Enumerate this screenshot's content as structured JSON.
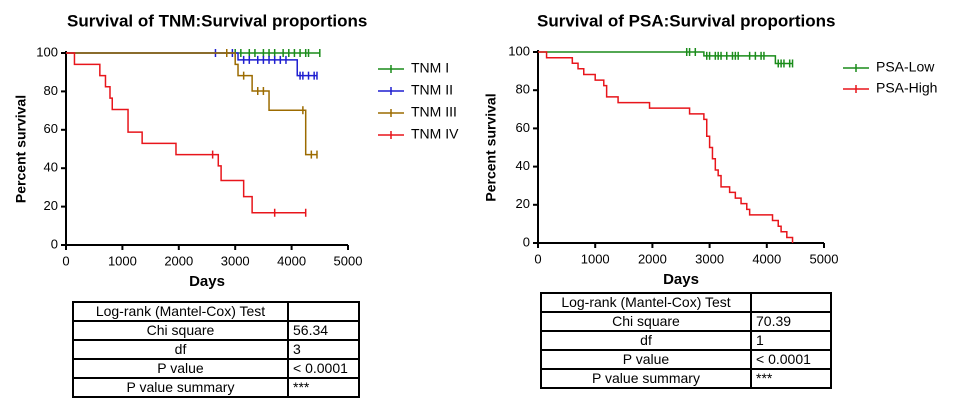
{
  "chart_data": [
    {
      "type": "survival",
      "title": "Survival of TNM:Survival proportions",
      "x_label": "Days",
      "y_label": "Percent survival",
      "xlim": [
        0,
        5000
      ],
      "xticks": [
        0,
        1000,
        2000,
        3000,
        4000,
        5000
      ],
      "ylim": [
        0,
        100
      ],
      "yticks": [
        0,
        20,
        40,
        60,
        80,
        100
      ],
      "series": [
        {
          "name": "TNM I",
          "color": "#1a8c1a",
          "x": [
            0
          ],
          "values": [
            100
          ],
          "censor_x": [
            3000,
            3100,
            3250,
            3350,
            3500,
            3600,
            3700,
            3850,
            3950,
            4050,
            4150,
            4250,
            4300,
            4500
          ],
          "censor_values": [
            100,
            100,
            100,
            100,
            100,
            100,
            100,
            100,
            100,
            100,
            100,
            100,
            100,
            100
          ]
        },
        {
          "name": "TNM II",
          "color": "#1f1fd0",
          "x": [
            0,
            3050,
            4100
          ],
          "values": [
            100,
            96.4,
            88.2
          ],
          "censor_x": [
            2650,
            2950,
            3150,
            3250,
            3400,
            3500,
            3600,
            3700,
            3800,
            3900,
            4150,
            4200,
            4300,
            4400,
            4450
          ],
          "censor_values": [
            100,
            100,
            96.4,
            96.4,
            96.4,
            96.4,
            96.4,
            96.4,
            96.4,
            96.4,
            88.2,
            88.2,
            88.2,
            88.2,
            88.2
          ]
        },
        {
          "name": "TNM III",
          "color": "#9c6b00",
          "x": [
            0,
            3000,
            3050,
            3300,
            3600,
            4250
          ],
          "values": [
            100,
            94.1,
            88.2,
            80.2,
            70.2,
            47.1
          ],
          "censor_x": [
            2850,
            3150,
            3400,
            3500,
            4200,
            4350,
            4450
          ],
          "censor_values": [
            100,
            88.2,
            80.2,
            80.2,
            70.2,
            47.1,
            47.1
          ]
        },
        {
          "name": "TNM IV",
          "color": "#e8151b",
          "x": [
            0,
            150,
            600,
            700,
            780,
            820,
            1100,
            1350,
            1950,
            2700,
            2750,
            3150,
            3300
          ],
          "values": [
            100,
            94.1,
            88.2,
            82.4,
            76.5,
            70.6,
            58.8,
            52.9,
            47.1,
            41.2,
            33.6,
            25.2,
            16.8
          ],
          "censor_x": [
            2600,
            3700,
            4250
          ],
          "censor_values": [
            47.1,
            16.8,
            16.8
          ]
        }
      ]
    },
    {
      "type": "survival",
      "title": "Survival of PSA:Survival proportions",
      "x_label": "Days",
      "y_label": "Percent survival",
      "xlim": [
        0,
        5000
      ],
      "xticks": [
        0,
        1000,
        2000,
        3000,
        4000,
        5000
      ],
      "ylim": [
        0,
        100
      ],
      "yticks": [
        0,
        20,
        40,
        60,
        80,
        100
      ],
      "series": [
        {
          "name": "PSA-Low",
          "color": "#1a8c1a",
          "x": [
            0,
            2900,
            4150
          ],
          "values": [
            100,
            98,
            94
          ],
          "censor_x": [
            2600,
            2650,
            2750,
            2950,
            3000,
            3100,
            3150,
            3200,
            3300,
            3400,
            3450,
            3500,
            3700,
            3800,
            3900,
            3950,
            4200,
            4250,
            4300,
            4400,
            4450
          ],
          "censor_values": [
            100,
            100,
            100,
            98,
            98,
            98,
            98,
            98,
            98,
            98,
            98,
            98,
            98,
            98,
            98,
            98,
            94,
            94,
            94,
            94,
            94
          ]
        },
        {
          "name": "PSA-High",
          "color": "#e8151b",
          "x": [
            0,
            150,
            600,
            700,
            800,
            1000,
            1150,
            1200,
            1400,
            1950,
            2650,
            2900,
            2950,
            3000,
            3050,
            3100,
            3150,
            3200,
            3350,
            3450,
            3550,
            3650,
            3700,
            4100,
            4200,
            4250,
            4350,
            4450
          ],
          "values": [
            100,
            97,
            94.1,
            91.2,
            88.2,
            85.3,
            82.4,
            76.5,
            73.5,
            70.6,
            67.6,
            64.7,
            55.9,
            50,
            44.1,
            38.2,
            35.3,
            29.4,
            26.5,
            23.5,
            20.6,
            17.6,
            14.7,
            11.8,
            8.8,
            5.9,
            2.9,
            0
          ]
        }
      ]
    }
  ],
  "tables": [
    {
      "rows": [
        [
          "Log-rank (Mantel-Cox) Test"
        ],
        [
          "Chi square",
          "56.34"
        ],
        [
          "df",
          "3"
        ],
        [
          "P value",
          "< 0.0001"
        ],
        [
          "P value summary",
          "***"
        ]
      ]
    },
    {
      "rows": [
        [
          "Log-rank (Mantel-Cox) Test"
        ],
        [
          "Chi square",
          "70.39"
        ],
        [
          "df",
          "1"
        ],
        [
          "P value",
          "< 0.0001"
        ],
        [
          "P value summary",
          "***"
        ]
      ]
    }
  ]
}
